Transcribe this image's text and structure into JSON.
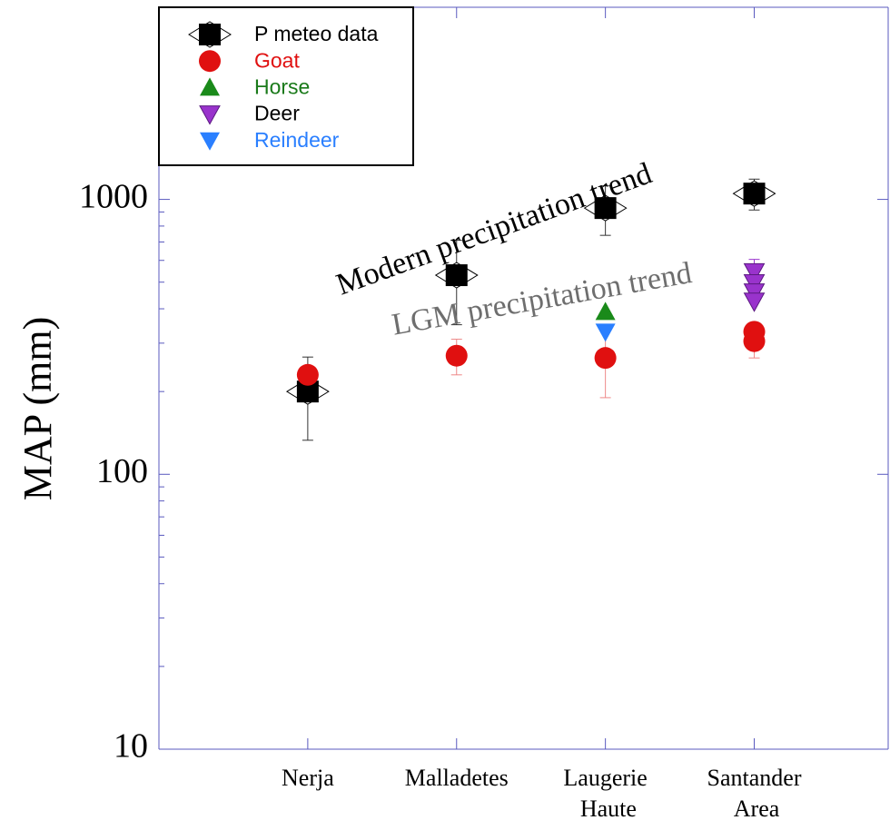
{
  "chart_data": {
    "type": "scatter",
    "ylabel": "MAP (mm)",
    "log_y": true,
    "xlim": [
      0,
      4.9
    ],
    "xticks": [
      {
        "value": 1,
        "label": "Nerja"
      },
      {
        "value": 2,
        "label": "Malladetes"
      },
      {
        "value": 3,
        "label": "Laugerie Haute"
      },
      {
        "value": 4,
        "label": "Santander Area"
      }
    ],
    "ylim": [
      10,
      5000
    ],
    "yticks": [
      10,
      100,
      1000
    ],
    "legend": "top-left",
    "annotations": [
      {
        "text": "Modern precipitation trend",
        "color": "#000000"
      },
      {
        "text": "LGM precipitation trend",
        "color": "#6e6e6e"
      }
    ],
    "series": [
      {
        "name": "P meteo data",
        "marker": "square",
        "color": "#000000",
        "text_color": "#000000",
        "x": [
          1,
          2,
          3,
          4
        ],
        "values": [
          200,
          530,
          930,
          1050
        ],
        "errors": [
          67,
          180,
          190,
          135
        ]
      },
      {
        "name": "Goat",
        "marker": "circle",
        "color": "#e01010",
        "text_color": "#e01010",
        "x": [
          1,
          2,
          3,
          4,
          4
        ],
        "values": [
          230,
          270,
          265,
          330,
          305
        ],
        "errors": [
          null,
          40,
          75,
          null,
          40
        ]
      },
      {
        "name": "Horse",
        "marker": "up",
        "color": "#1a8a1a",
        "text_color": "#1a7a1a",
        "x": [
          3
        ],
        "values": [
          390
        ],
        "errors": [
          null
        ]
      },
      {
        "name": "Deer",
        "marker": "down",
        "color": "#9933cc",
        "text_color": "#000000",
        "x": [
          4,
          4,
          4,
          4
        ],
        "values": [
          545,
          497,
          460,
          426
        ],
        "errors": [
          60,
          null,
          null,
          null
        ]
      },
      {
        "name": "Reindeer",
        "marker": "down",
        "color": "#2a7fff",
        "text_color": "#2a7fff",
        "x": [
          3
        ],
        "values": [
          330
        ],
        "errors": [
          null
        ]
      }
    ]
  }
}
